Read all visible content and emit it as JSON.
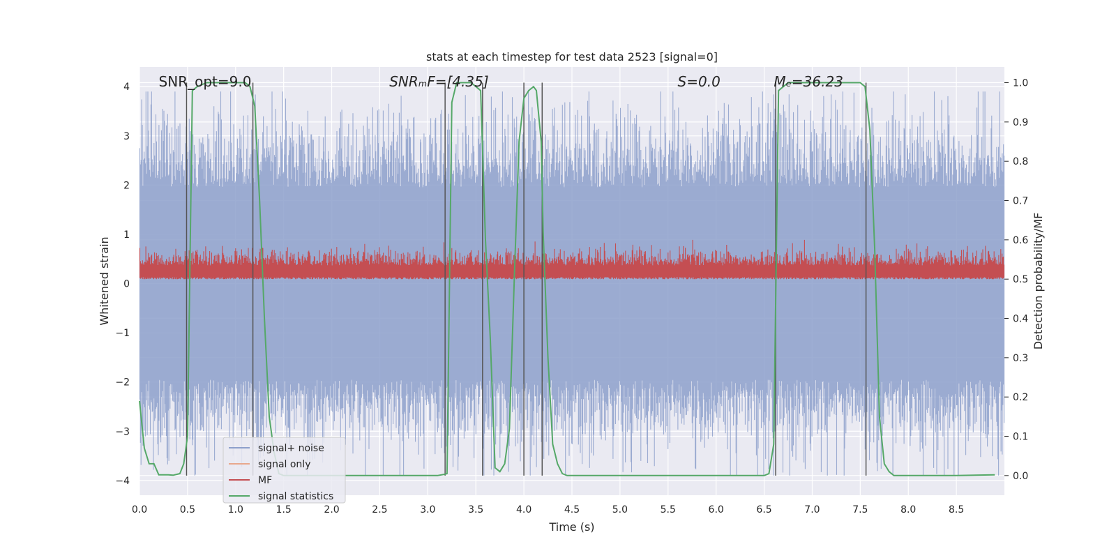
{
  "chart_data": {
    "type": "line",
    "title": "stats at each timestep for test data 2523 [signal=0]",
    "xlabel": "Time (s)",
    "ylabel": "Whitened strain",
    "ylabel_right": "Detection probability/MF",
    "xlim": [
      0.0,
      9.0
    ],
    "ylim": [
      -4.3,
      4.4
    ],
    "ylim_right": [
      -0.05,
      1.04
    ],
    "x_ticks": [
      0.0,
      0.5,
      1.0,
      1.5,
      2.0,
      2.5,
      3.0,
      3.5,
      4.0,
      4.5,
      5.0,
      5.5,
      6.0,
      6.5,
      7.0,
      7.5,
      8.0,
      8.5
    ],
    "x_tick_labels": [
      "0.0",
      "0.5",
      "1.0",
      "1.5",
      "2.0",
      "2.5",
      "3.0",
      "3.5",
      "4.0",
      "4.5",
      "5.0",
      "5.5",
      "6.0",
      "6.5",
      "7.0",
      "7.5",
      "8.0",
      "8.5"
    ],
    "y_ticks": [
      -4,
      -3,
      -2,
      -1,
      0,
      1,
      2,
      3,
      4
    ],
    "y_tick_labels": [
      "−4",
      "−3",
      "−2",
      "−1",
      "0",
      "1",
      "2",
      "3",
      "4"
    ],
    "y_ticks_right": [
      0.0,
      0.1,
      0.2,
      0.3,
      0.4,
      0.5,
      0.6,
      0.7,
      0.8,
      0.9,
      1.0
    ],
    "y_tick_labels_right": [
      "0.0",
      "0.1",
      "0.2",
      "0.3",
      "0.4",
      "0.5",
      "0.6",
      "0.7",
      "0.8",
      "0.9",
      "1.0"
    ],
    "grid": true,
    "legend_placement": "lower-left",
    "colors": {
      "background": "#eaeaf2",
      "grid": "#ffffff",
      "noise": "#8da0cb",
      "signal_only": "#e8a88c",
      "mf": "#c44e52",
      "stats": "#55a868",
      "vlines": "#555555"
    },
    "annotations": [
      {
        "text": "SNR_opt=9.0",
        "x": 0.2
      },
      {
        "text": "SNRₘF=[4.35]",
        "x": 2.6
      },
      {
        "text": "S=0.0",
        "x": 5.6
      },
      {
        "text": "Mₑ=36.23",
        "x": 6.6
      }
    ],
    "series": [
      {
        "name": "signal+ noise",
        "style": "dense noise band",
        "typical_range": [
          -2.3,
          2.3
        ],
        "peak_range": [
          -3.9,
          3.9
        ]
      },
      {
        "name": "signal only",
        "values": []
      },
      {
        "name": "MF",
        "axis": "right",
        "style": "dense noise band",
        "typical_range": [
          0.5,
          0.56
        ],
        "peak_range": [
          0.5,
          0.6
        ]
      },
      {
        "name": "signal statistics",
        "axis": "right",
        "x": [
          0.0,
          0.05,
          0.1,
          0.15,
          0.2,
          0.3,
          0.35,
          0.42,
          0.46,
          0.5,
          0.55,
          0.6,
          0.7,
          1.0,
          1.1,
          1.15,
          1.2,
          1.25,
          1.3,
          1.35,
          1.4,
          1.45,
          1.5,
          3.1,
          3.17,
          3.2,
          3.25,
          3.3,
          3.35,
          3.45,
          3.55,
          3.6,
          3.65,
          3.7,
          3.75,
          3.8,
          3.85,
          3.9,
          3.95,
          4.0,
          4.05,
          4.1,
          4.13,
          4.18,
          4.2,
          4.25,
          4.3,
          4.35,
          4.4,
          4.45,
          4.5,
          5.5,
          6.5,
          6.55,
          6.6,
          6.65,
          6.7,
          6.75,
          6.85,
          7.0,
          7.5,
          7.55,
          7.6,
          7.65,
          7.7,
          7.75,
          7.8,
          7.85,
          7.9,
          8.0,
          8.5,
          8.9
        ],
        "values": [
          0.19,
          0.07,
          0.03,
          0.03,
          0.002,
          0.002,
          0.001,
          0.005,
          0.03,
          0.1,
          0.98,
          0.99,
          1.0,
          1.0,
          1.0,
          0.99,
          0.94,
          0.7,
          0.4,
          0.15,
          0.06,
          0.005,
          0.0,
          0.0,
          0.003,
          0.005,
          0.95,
          1.0,
          1.0,
          1.0,
          0.98,
          0.6,
          0.35,
          0.02,
          0.01,
          0.03,
          0.12,
          0.5,
          0.85,
          0.96,
          0.98,
          0.99,
          0.98,
          0.85,
          0.62,
          0.3,
          0.08,
          0.03,
          0.005,
          0.0,
          0.0,
          0.0,
          0.0,
          0.005,
          0.08,
          0.98,
          0.99,
          1.0,
          1.0,
          1.0,
          1.0,
          0.99,
          0.88,
          0.58,
          0.15,
          0.03,
          0.01,
          0.0,
          0.0,
          0.0,
          0.0,
          0.002
        ]
      }
    ],
    "vertical_lines_x": [
      0.49,
      1.18,
      3.18,
      3.57,
      4.0,
      4.19,
      6.62,
      7.56
    ]
  }
}
